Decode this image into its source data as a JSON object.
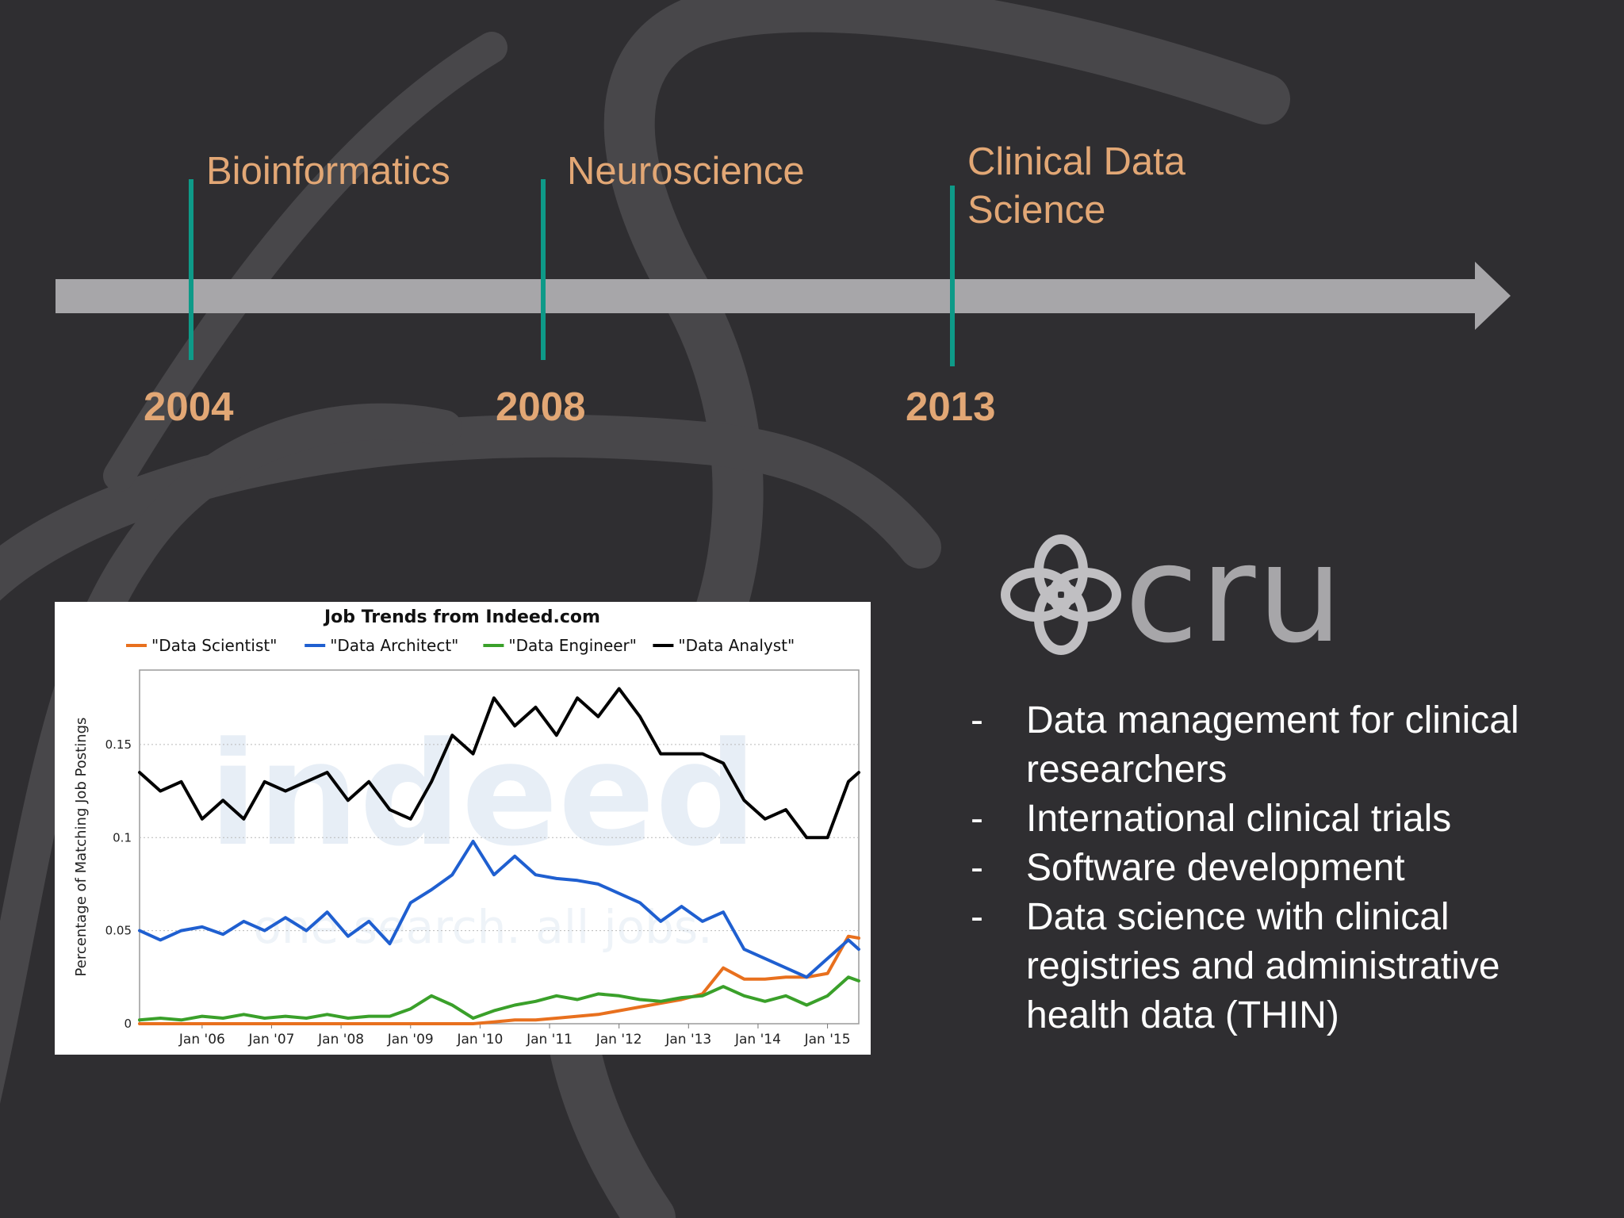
{
  "slide": {
    "background_color": "#2f2e31",
    "accent_color": "#e2a775",
    "tick_color": "#0e9a88"
  },
  "timeline": {
    "milestones": [
      {
        "year": "2004",
        "label": "Bioinformatics"
      },
      {
        "year": "2008",
        "label": "Neuroscience"
      },
      {
        "year": "2013",
        "label_lines": [
          "Clinical Data",
          "Science"
        ]
      }
    ]
  },
  "logo": {
    "text": "cru",
    "icon": "clover-knot-icon"
  },
  "bullets": {
    "marker": "-",
    "items": [
      {
        "lines": [
          "Data management for clinical",
          "researchers"
        ]
      },
      {
        "lines": [
          "International clinical trials"
        ]
      },
      {
        "lines": [
          "Software development"
        ]
      },
      {
        "lines": [
          "Data science with clinical",
          "registries and administrative",
          "health data (THIN)"
        ]
      }
    ]
  },
  "chart_data": {
    "type": "line",
    "title": "Job Trends from Indeed.com",
    "ylabel": "Percentage of Matching Job Postings",
    "xlabel": "",
    "watermark": "indeed",
    "watermark_sub": "one search. all jobs.",
    "x_ticks": [
      "Jan '06",
      "Jan '07",
      "Jan '08",
      "Jan '09",
      "Jan '10",
      "Jan '11",
      "Jan '12",
      "Jan '13",
      "Jan '14",
      "Jan '15"
    ],
    "x_tick_positions": [
      2006,
      2007,
      2008,
      2009,
      2010,
      2011,
      2012,
      2013,
      2014,
      2015
    ],
    "x_range": [
      2005.1,
      2015.45
    ],
    "y_ticks": [
      "0",
      "0.05",
      "0.1",
      "0.15"
    ],
    "y_tick_values": [
      0,
      0.05,
      0.1,
      0.15
    ],
    "ylim": [
      0,
      0.19
    ],
    "grid": true,
    "legend_position": "top",
    "x": [
      2005.1,
      2005.4,
      2005.7,
      2006.0,
      2006.3,
      2006.6,
      2006.9,
      2007.2,
      2007.5,
      2007.8,
      2008.1,
      2008.4,
      2008.7,
      2009.0,
      2009.3,
      2009.6,
      2009.9,
      2010.2,
      2010.5,
      2010.8,
      2011.1,
      2011.4,
      2011.7,
      2012.0,
      2012.3,
      2012.6,
      2012.9,
      2013.2,
      2013.5,
      2013.8,
      2014.1,
      2014.4,
      2014.7,
      2015.0,
      2015.3,
      2015.45
    ],
    "series": [
      {
        "name": "\"Data Scientist\"",
        "color": "#e8701e",
        "values": [
          0,
          0,
          0,
          0,
          0,
          0,
          0,
          0,
          0,
          0,
          0,
          0,
          0,
          0,
          0,
          0,
          0,
          0.001,
          0.002,
          0.002,
          0.003,
          0.004,
          0.005,
          0.007,
          0.009,
          0.011,
          0.013,
          0.016,
          0.03,
          0.024,
          0.024,
          0.025,
          0.025,
          0.027,
          0.047,
          0.046
        ]
      },
      {
        "name": "\"Data Architect\"",
        "color": "#1f5fd0",
        "values": [
          0.05,
          0.045,
          0.05,
          0.052,
          0.048,
          0.055,
          0.05,
          0.057,
          0.05,
          0.06,
          0.047,
          0.055,
          0.043,
          0.065,
          0.072,
          0.08,
          0.098,
          0.08,
          0.09,
          0.08,
          0.078,
          0.077,
          0.075,
          0.07,
          0.065,
          0.055,
          0.063,
          0.055,
          0.06,
          0.04,
          0.035,
          0.03,
          0.025,
          0.035,
          0.045,
          0.04
        ]
      },
      {
        "name": "\"Data Engineer\"",
        "color": "#3aa02a",
        "values": [
          0.002,
          0.003,
          0.002,
          0.004,
          0.003,
          0.005,
          0.003,
          0.004,
          0.003,
          0.005,
          0.003,
          0.004,
          0.004,
          0.008,
          0.015,
          0.01,
          0.003,
          0.007,
          0.01,
          0.012,
          0.015,
          0.013,
          0.016,
          0.015,
          0.013,
          0.012,
          0.014,
          0.015,
          0.02,
          0.015,
          0.012,
          0.015,
          0.01,
          0.015,
          0.025,
          0.023
        ]
      },
      {
        "name": "\"Data Analyst\"",
        "color": "#000000",
        "values": [
          0.135,
          0.125,
          0.13,
          0.11,
          0.12,
          0.11,
          0.13,
          0.125,
          0.13,
          0.135,
          0.12,
          0.13,
          0.115,
          0.11,
          0.13,
          0.155,
          0.145,
          0.175,
          0.16,
          0.17,
          0.155,
          0.175,
          0.165,
          0.18,
          0.165,
          0.145,
          0.145,
          0.145,
          0.14,
          0.12,
          0.11,
          0.115,
          0.1,
          0.1,
          0.13,
          0.135
        ]
      }
    ]
  }
}
